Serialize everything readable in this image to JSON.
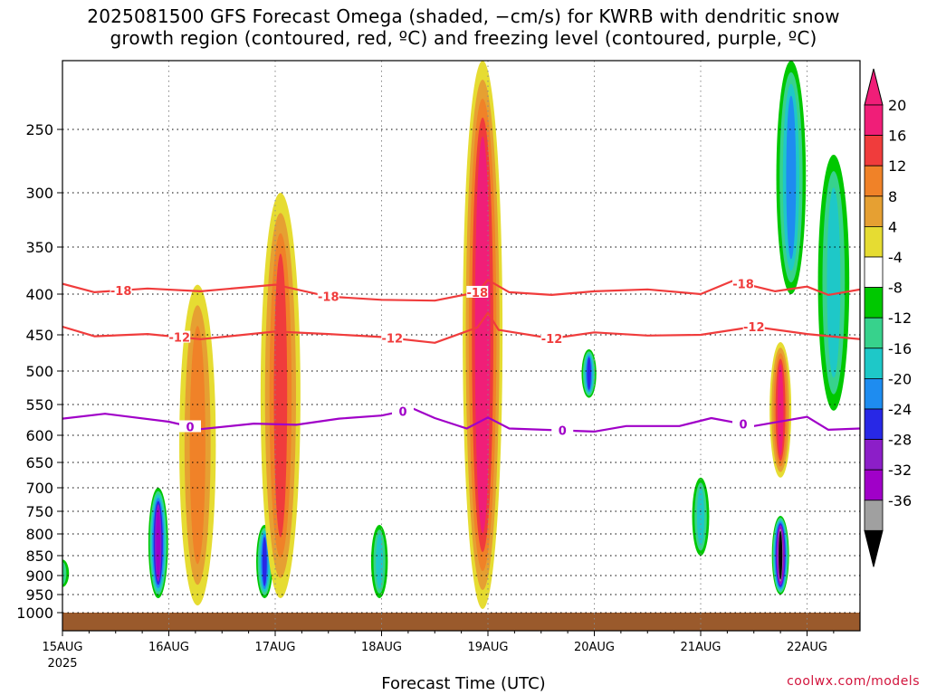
{
  "title_line1": "2025081500 GFS Forecast Omega (shaded, −cm/s) for KWRB with dendritic snow",
  "title_line2": "growth region (contoured, red, ºC) and freezing level (contoured, purple, ºC)",
  "credit": "coolwx.com/models",
  "chart_data": {
    "type": "heatmap",
    "title": "2025081500 GFS Forecast Omega (shaded, −cm/s) for KWRB with dendritic snow growth region (contoured, red, ºC) and freezing level (contoured, purple, ºC)",
    "xlabel": "Forecast Time (UTC)",
    "ylabel": "",
    "y_axis": "pressure (hPa, inverted)",
    "ylim": [
      1015,
      190
    ],
    "y_ticks": [
      250,
      300,
      350,
      400,
      450,
      500,
      550,
      600,
      650,
      700,
      750,
      800,
      850,
      900,
      950,
      1000
    ],
    "x_ticks": [
      {
        "label": "15AUG",
        "sub": "2025",
        "day": 0
      },
      {
        "label": "16AUG",
        "day": 1
      },
      {
        "label": "17AUG",
        "day": 2
      },
      {
        "label": "18AUG",
        "day": 3
      },
      {
        "label": "19AUG",
        "day": 4
      },
      {
        "label": "20AUG",
        "day": 5
      },
      {
        "label": "21AUG",
        "day": 6
      },
      {
        "label": "22AUG",
        "day": 7
      }
    ],
    "xlim_days": [
      0,
      7.5
    ],
    "grid": true,
    "colorbar": {
      "levels": [
        20,
        16,
        12,
        8,
        4,
        -4,
        -8,
        -12,
        -16,
        -20,
        -24,
        -28,
        -32,
        -36
      ],
      "colors": [
        "#f01e78",
        "#f03c3c",
        "#f08228",
        "#e6a032",
        "#e6dc32",
        "#ffffff",
        "#00c800",
        "#37d28c",
        "#1ec8c8",
        "#1e8cf0",
        "#2828e6",
        "#8c1ec8",
        "#a000c8",
        "#a0a0a0"
      ],
      "top_arrow": "#f01e78",
      "bottom_arrow": "#000000"
    },
    "contours": [
      {
        "label": "-18",
        "color": "#f03c3c",
        "points": [
          [
            0,
            389
          ],
          [
            0.3,
            398
          ],
          [
            0.8,
            394
          ],
          [
            1.3,
            397
          ],
          [
            2.0,
            390
          ],
          [
            2.5,
            403
          ],
          [
            3.0,
            407
          ],
          [
            3.5,
            408
          ],
          [
            3.9,
            398
          ],
          [
            4.0,
            385
          ],
          [
            4.2,
            398
          ],
          [
            4.6,
            401
          ],
          [
            5.0,
            397
          ],
          [
            5.5,
            395
          ],
          [
            6.0,
            400
          ],
          [
            6.3,
            386
          ],
          [
            6.7,
            397
          ],
          [
            7.0,
            392
          ],
          [
            7.2,
            401
          ],
          [
            7.5,
            395
          ]
        ],
        "label_days": [
          0.55,
          2.5,
          3.9,
          6.4
        ]
      },
      {
        "label": "-12",
        "color": "#f03c3c",
        "points": [
          [
            0,
            440
          ],
          [
            0.3,
            452
          ],
          [
            0.8,
            449
          ],
          [
            1.3,
            456
          ],
          [
            2.0,
            446
          ],
          [
            2.5,
            449
          ],
          [
            3.0,
            453
          ],
          [
            3.5,
            461
          ],
          [
            3.9,
            441
          ],
          [
            4.0,
            423
          ],
          [
            4.1,
            444
          ],
          [
            4.6,
            455
          ],
          [
            5.0,
            447
          ],
          [
            5.5,
            451
          ],
          [
            6.0,
            450
          ],
          [
            6.5,
            440
          ],
          [
            7.0,
            449
          ],
          [
            7.5,
            456
          ]
        ],
        "label_days": [
          1.1,
          3.1,
          4.6,
          6.5
        ]
      },
      {
        "label": "0",
        "color": "#a000c8",
        "points": [
          [
            0,
            573
          ],
          [
            0.4,
            565
          ],
          [
            1.0,
            578
          ],
          [
            1.3,
            590
          ],
          [
            1.8,
            581
          ],
          [
            2.2,
            583
          ],
          [
            2.6,
            573
          ],
          [
            3.0,
            568
          ],
          [
            3.3,
            557
          ],
          [
            3.5,
            572
          ],
          [
            3.8,
            589
          ],
          [
            4.0,
            571
          ],
          [
            4.2,
            589
          ],
          [
            4.7,
            592
          ],
          [
            5.0,
            594
          ],
          [
            5.3,
            585
          ],
          [
            5.8,
            585
          ],
          [
            6.1,
            572
          ],
          [
            6.5,
            585
          ],
          [
            7.0,
            570
          ],
          [
            7.2,
            591
          ],
          [
            7.5,
            589
          ]
        ],
        "label_days": [
          1.2,
          3.2,
          4.7,
          6.4
        ]
      }
    ],
    "omega_features": [
      {
        "day": 0.0,
        "p_top": 860,
        "p_bot": 930,
        "value": -10
      },
      {
        "day": 0.9,
        "p_top": 700,
        "p_bot": 960,
        "value": -28
      },
      {
        "day": 1.27,
        "p_top": 390,
        "p_bot": 980,
        "value": 14
      },
      {
        "day": 1.9,
        "p_top": 780,
        "p_bot": 960,
        "value": -20
      },
      {
        "day": 2.05,
        "p_top": 300,
        "p_bot": 960,
        "value": 18
      },
      {
        "day": 2.98,
        "p_top": 780,
        "p_bot": 960,
        "value": -12
      },
      {
        "day": 3.95,
        "p_top": 190,
        "p_bot": 990,
        "value": 24
      },
      {
        "day": 4.95,
        "p_top": 470,
        "p_bot": 540,
        "value": -22
      },
      {
        "day": 6.0,
        "p_top": 680,
        "p_bot": 850,
        "value": -12
      },
      {
        "day": 6.75,
        "p_top": 460,
        "p_bot": 680,
        "value": 22
      },
      {
        "day": 6.75,
        "p_top": 760,
        "p_bot": 950,
        "value": -36
      },
      {
        "day": 6.85,
        "p_top": 190,
        "p_bot": 400,
        "value": -16
      },
      {
        "day": 7.25,
        "p_top": 270,
        "p_bot": 560,
        "value": -12
      }
    ]
  }
}
